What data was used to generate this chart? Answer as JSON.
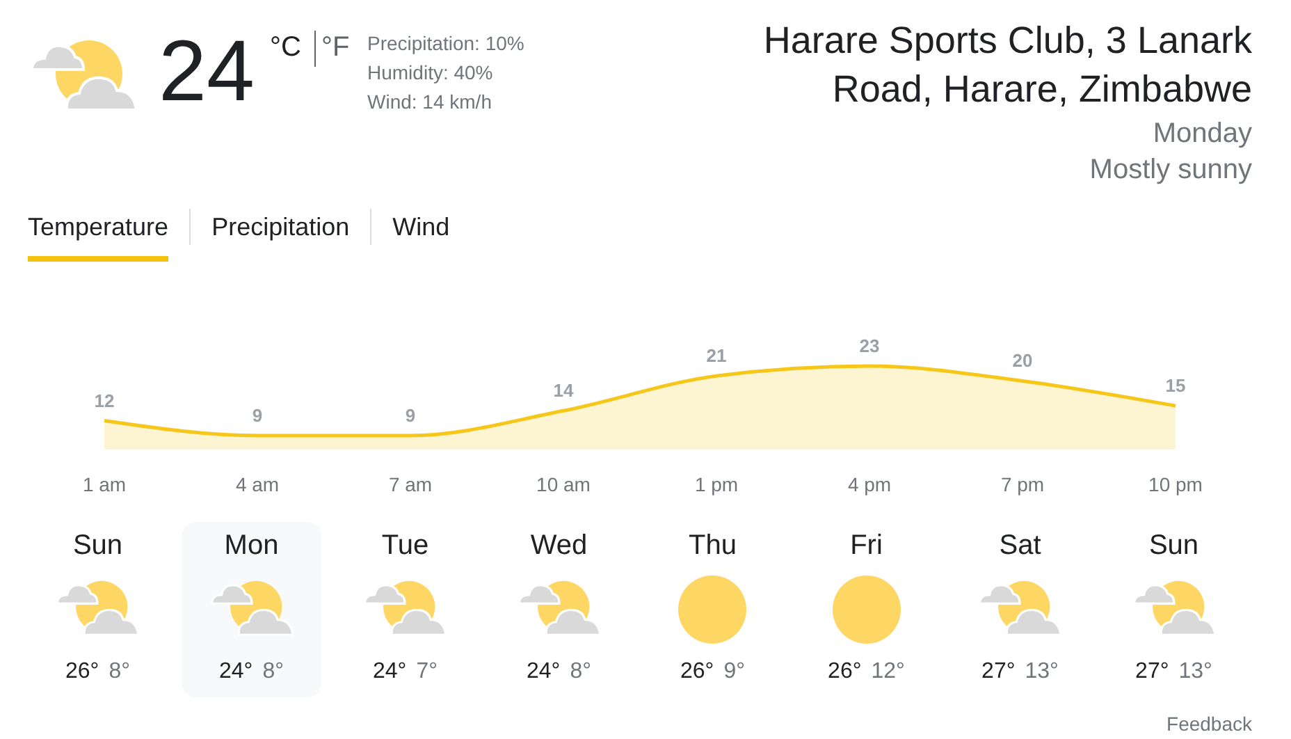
{
  "chart_data": {
    "type": "area",
    "title": "Harare Sports Club, 3 Lanark Road, Harare, Zimbabwe",
    "subtitle": "Monday",
    "categories": [
      "1 am",
      "4 am",
      "7 am",
      "10 am",
      "1 pm",
      "4 pm",
      "7 pm",
      "10 pm"
    ],
    "values": [
      12,
      9,
      9,
      14,
      21,
      23,
      20,
      15
    ],
    "color": "#f6c619",
    "data_labels": true,
    "annotations": [
      "24",
      "°C",
      "°F",
      "Precipitation: 10%",
      "Humidity: 40%",
      "Wind: 14 km/h",
      "Mostly sunny",
      "Temperature",
      "Precipitation",
      "Wind",
      "Sun",
      "26°",
      "8°",
      "Mon",
      "24°",
      "8°",
      "Tue",
      "24°",
      "7°",
      "Wed",
      "24°",
      "8°",
      "Thu",
      "26°",
      "9°",
      "Fri",
      "26°",
      "12°",
      "Sat",
      "27°",
      "13°",
      "Sun",
      "27°",
      "13°",
      "Feedback"
    ]
  }
}
